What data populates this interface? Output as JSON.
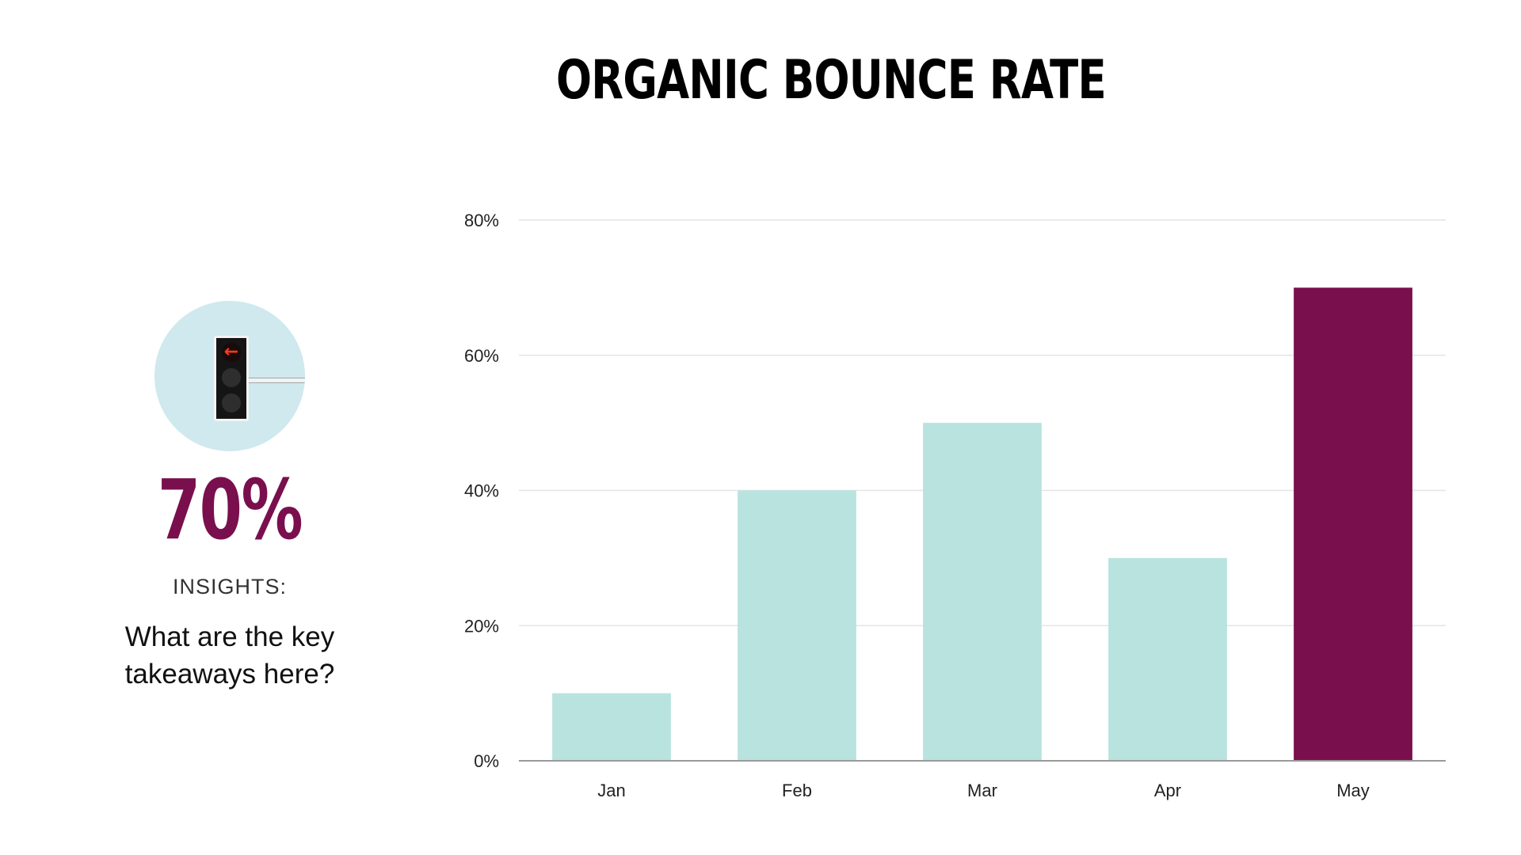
{
  "slide": {
    "title": "ORGANIC BOUNCE RATE",
    "highlight_value": "70%",
    "insights_label": "INSIGHTS:",
    "insights_text_line1": "What are the key",
    "insights_text_line2": "takeaways here?",
    "icon": "traffic-light-icon"
  },
  "colors": {
    "accent": "#7a0f4e",
    "bar": "#b9e3df",
    "grid": "#e4e4e4",
    "axis": "#999999"
  },
  "chart_data": {
    "type": "bar",
    "categories": [
      "Jan",
      "Feb",
      "Mar",
      "Apr",
      "May"
    ],
    "values": [
      10,
      40,
      50,
      30,
      70
    ],
    "highlight_index": 4,
    "yticks": [
      "0%",
      "20%",
      "40%",
      "60%",
      "80%"
    ],
    "ylim": [
      0,
      80
    ],
    "grid": true,
    "legend": "none"
  }
}
